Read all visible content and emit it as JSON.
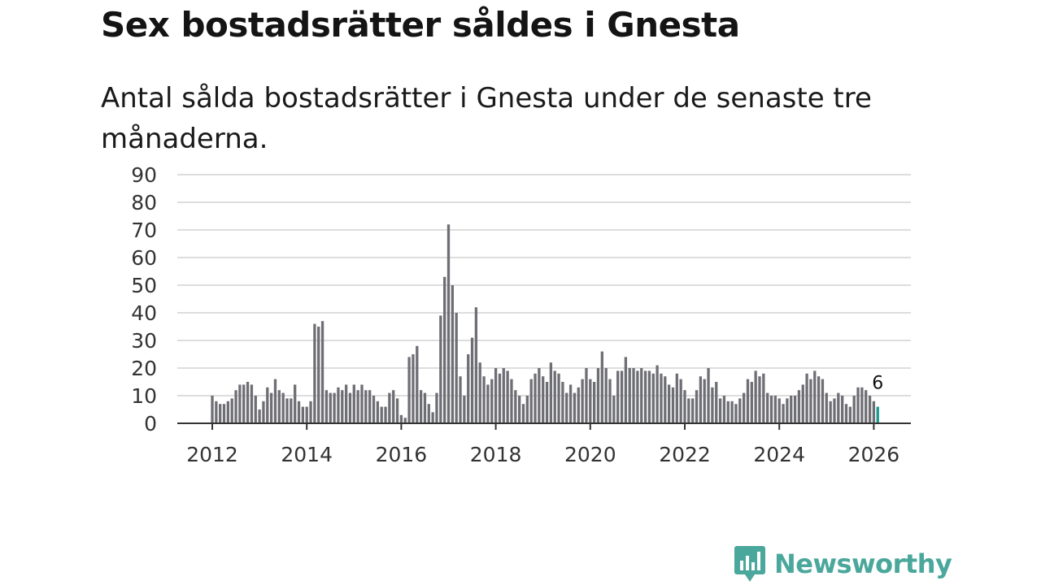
{
  "title": "Sex bostadsrätter såldes i Gnesta",
  "subtitle": "Antal sålda bostadsrätter i Gnesta under de senaste tre månaderna.",
  "brand": {
    "name": "Newsworthy",
    "icon": "newsworthy-logo-icon"
  },
  "colors": {
    "bar": "#6e6e75",
    "highlight": "#1a9a8f",
    "grid": "#dddddd",
    "axis": "#333333",
    "brand": "#4aa79b"
  },
  "chart_data": {
    "type": "bar",
    "title": "Sex bostadsrätter såldes i Gnesta",
    "subtitle": "Antal sålda bostadsrätter i Gnesta under de senaste tre månaderna.",
    "xlabel": "",
    "ylabel": "",
    "ylim": [
      0,
      90
    ],
    "xlim": [
      2012,
      2026
    ],
    "yticks": [
      "0",
      "10",
      "20",
      "30",
      "40",
      "50",
      "60",
      "70",
      "80",
      "90"
    ],
    "xticks": [
      "2012",
      "2014",
      "2016",
      "2018",
      "2020",
      "2022",
      "2024",
      "2026"
    ],
    "grid": true,
    "start": {
      "year": 2012,
      "month": 1
    },
    "interval": "month",
    "values": [
      10,
      8,
      7,
      7,
      8,
      9,
      12,
      14,
      14,
      15,
      14,
      10,
      5,
      8,
      13,
      11,
      16,
      12,
      11,
      9,
      9,
      14,
      8,
      6,
      6,
      8,
      36,
      35,
      37,
      12,
      11,
      11,
      13,
      12,
      14,
      11,
      14,
      12,
      14,
      12,
      12,
      10,
      8,
      6,
      6,
      11,
      12,
      9,
      3,
      2,
      24,
      25,
      28,
      12,
      11,
      7,
      4,
      11,
      39,
      53,
      72,
      50,
      40,
      17,
      10,
      25,
      31,
      42,
      22,
      17,
      14,
      16,
      20,
      18,
      20,
      19,
      16,
      12,
      10,
      7,
      10,
      16,
      18,
      20,
      17,
      15,
      22,
      19,
      18,
      15,
      11,
      14,
      11,
      13,
      16,
      20,
      16,
      15,
      20,
      26,
      20,
      16,
      10,
      19,
      19,
      24,
      20,
      20,
      19,
      20,
      19,
      19,
      18,
      21,
      18,
      17,
      14,
      13,
      18,
      16,
      12,
      9,
      9,
      12,
      17,
      16,
      20,
      13,
      15,
      9,
      10,
      8,
      8,
      7,
      9,
      11,
      16,
      15,
      19,
      17,
      18,
      11,
      10,
      10,
      9,
      7,
      9,
      10,
      10,
      12,
      14,
      18,
      16,
      19,
      17,
      16,
      11,
      8,
      9,
      11,
      10,
      7,
      6,
      10,
      13,
      13,
      12,
      10,
      8,
      6
    ],
    "highlight_last": true,
    "annotation": {
      "label": "6",
      "value": 6
    }
  }
}
